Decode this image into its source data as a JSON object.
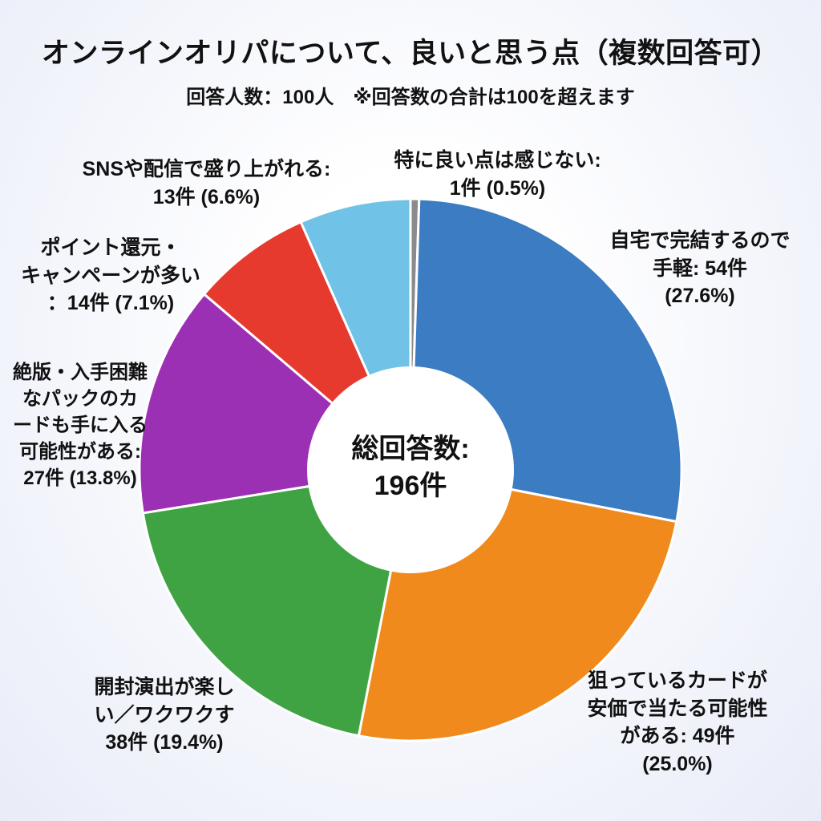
{
  "page": {
    "title": "オンラインオリパについて、良いと思う点（複数回答可）",
    "subtitle": "回答人数：100人　※回答数の合計は100を超えます"
  },
  "chart_data": {
    "type": "pie",
    "style": "donut",
    "title": "オンラインオリパについて、良いと思う点（複数回答可）",
    "subtitle": "回答人数：100人　※回答数の合計は100を超えます",
    "total_responses": 196,
    "respondents": 100,
    "center_lines": [
      "総回答数:",
      "196件"
    ],
    "start_angle": "12時の位置",
    "direction": "clockwise",
    "segments": [
      {
        "name": "特に良い点は感じない",
        "count": 1,
        "pct": 0.5,
        "color": "#8b8b8b",
        "label_lines": [
          "特に良い点は感じない:",
          "1件 (0.5%)"
        ]
      },
      {
        "name": "自宅で完結するので手軽",
        "count": 54,
        "pct": 27.6,
        "color": "#3b7cc2",
        "label_lines": [
          "自宅で完結するので",
          "手軽: 54件",
          "(27.6%)"
        ]
      },
      {
        "name": "狙っているカードが安価で当たる可能性がある",
        "count": 49,
        "pct": 25.0,
        "color": "#f18a1d",
        "label_lines": [
          "狙っているカードが",
          "安価で当たる可能性",
          "がある: 49件",
          "(25.0%)"
        ]
      },
      {
        "name": "開封演出が楽しい／ワクワクする",
        "count": 38,
        "pct": 19.4,
        "color": "#3fa344",
        "label_lines": [
          "開封演出が楽し",
          "い／ワクワクす",
          "38件 (19.4%)"
        ]
      },
      {
        "name": "絶版・入手困難なパックのカードも手に入る可能性がある",
        "count": 27,
        "pct": 13.8,
        "color": "#9b30b5",
        "label_lines": [
          "絶版・入手困難",
          "なパックのカ",
          "ードも手に入る",
          "可能性がある:",
          "27件 (13.8%)"
        ]
      },
      {
        "name": "ポイント還元・キャンペーンが多い",
        "count": 14,
        "pct": 7.1,
        "color": "#e63a2e",
        "label_lines": [
          "ポイント還元・",
          "キャンペーンが多い",
          "：14件 (7.1%)"
        ]
      },
      {
        "name": "SNSや配信で盛り上がれる",
        "count": 13,
        "pct": 6.6,
        "color": "#70c3e7",
        "label_lines": [
          "SNSや配信で盛り上がれる:",
          "13件 (6.6%)"
        ]
      }
    ]
  }
}
